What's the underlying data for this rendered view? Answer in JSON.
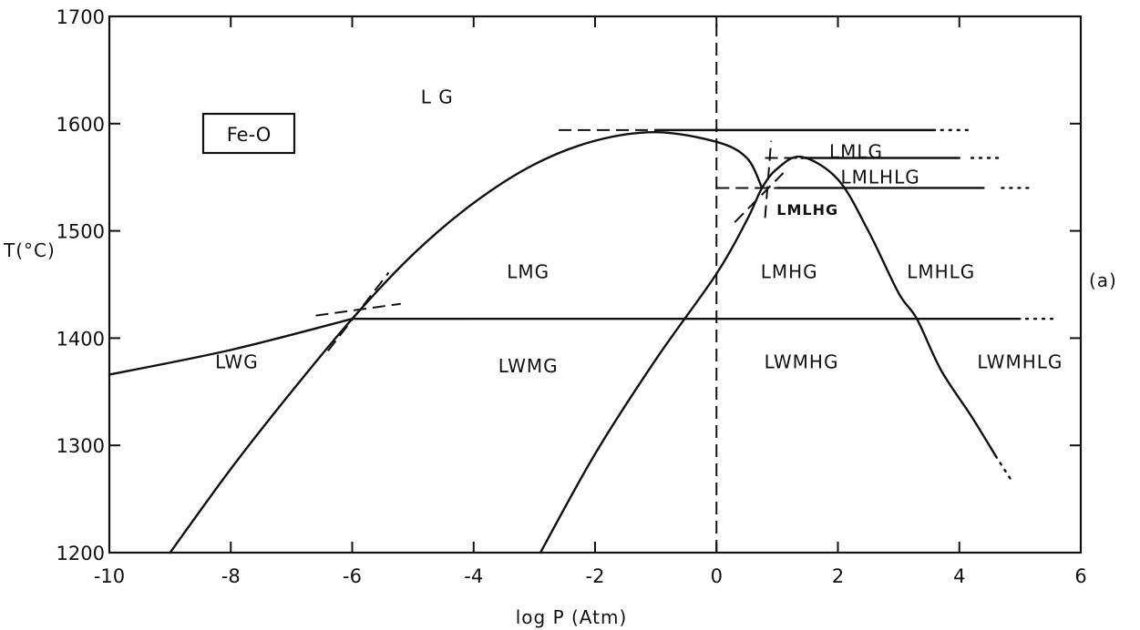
{
  "chart_data": {
    "type": "line",
    "title": "",
    "xlabel": "log P (Atm)",
    "ylabel": "T(°C)",
    "xlim": [
      -10,
      6
    ],
    "ylim": [
      1200,
      1700
    ],
    "x_ticks": [
      "-10",
      "-8",
      "-6",
      "-4",
      "-2",
      "0",
      "2",
      "4",
      "6"
    ],
    "y_ticks": [
      "1200",
      "1300",
      "1400",
      "1500",
      "1600",
      "1700"
    ],
    "system_label": "Fe-O",
    "case_label": "(a)",
    "regions": [
      {
        "label": "L G",
        "x": -4.6,
        "y": 1625
      },
      {
        "label": "LMG",
        "x": -3.1,
        "y": 1462
      },
      {
        "label": "LWG",
        "x": -7.9,
        "y": 1378
      },
      {
        "label": "LWMG",
        "x": -3.1,
        "y": 1374
      },
      {
        "label": "LMHG",
        "x": 1.2,
        "y": 1462
      },
      {
        "label": "LMHLG",
        "x": 3.7,
        "y": 1462
      },
      {
        "label": "LWMHG",
        "x": 1.4,
        "y": 1378
      },
      {
        "label": "LWMHLG",
        "x": 5.0,
        "y": 1378
      },
      {
        "label": "LMLG",
        "x": 2.3,
        "y": 1574
      },
      {
        "label": "LMLHLG",
        "x": 2.7,
        "y": 1550
      },
      {
        "label": "LMLHG",
        "x": 1.5,
        "y": 1521
      }
    ],
    "series": [
      {
        "id": "lwg-boundary",
        "style": "solid",
        "points": [
          [
            -10,
            1366
          ],
          [
            -8,
            1389
          ],
          [
            -6,
            1418
          ]
        ]
      },
      {
        "id": "outer-curve",
        "style": "solid",
        "points": [
          [
            -9,
            1200
          ],
          [
            -8,
            1278
          ],
          [
            -7,
            1350
          ],
          [
            -6,
            1418
          ],
          [
            -5,
            1478
          ],
          [
            -4,
            1526
          ],
          [
            -3,
            1562
          ],
          [
            -2,
            1584
          ],
          [
            -1,
            1592
          ],
          [
            0,
            1583
          ],
          [
            0.5,
            1568
          ],
          [
            0.75,
            1540
          ]
        ]
      },
      {
        "id": "inner-curve",
        "style": "solid",
        "points": [
          [
            -2.9,
            1200
          ],
          [
            -2,
            1292
          ],
          [
            -1,
            1380
          ],
          [
            0,
            1460
          ],
          [
            0.5,
            1510
          ],
          [
            0.75,
            1540
          ],
          [
            1,
            1558
          ],
          [
            1.4,
            1569
          ],
          [
            2,
            1548
          ],
          [
            2.5,
            1500
          ],
          [
            3,
            1442
          ],
          [
            3.3,
            1418
          ],
          [
            3.7,
            1370
          ],
          [
            4.2,
            1327
          ],
          [
            4.6,
            1290
          ]
        ]
      },
      {
        "id": "monotectic-1418",
        "style": "solid",
        "points": [
          [
            -6,
            1418
          ],
          [
            5,
            1418
          ]
        ]
      },
      {
        "id": "line-1594",
        "style": "solid",
        "points": [
          [
            -1,
            1594
          ],
          [
            3.6,
            1594
          ]
        ]
      },
      {
        "id": "line-1568",
        "style": "solid",
        "points": [
          [
            1.4,
            1568
          ],
          [
            4.0,
            1568
          ]
        ]
      },
      {
        "id": "line-1540",
        "style": "solid",
        "points": [
          [
            1.0,
            1540
          ],
          [
            4.4,
            1540
          ]
        ]
      },
      {
        "id": "dash-1594",
        "style": "dashed",
        "points": [
          [
            -2.6,
            1594
          ],
          [
            -1,
            1594
          ]
        ]
      },
      {
        "id": "dash-1568",
        "style": "dashed",
        "points": [
          [
            0.8,
            1568
          ],
          [
            1.4,
            1568
          ]
        ]
      },
      {
        "id": "dash-1540",
        "style": "dashed",
        "points": [
          [
            0,
            1540
          ],
          [
            1.0,
            1540
          ]
        ]
      },
      {
        "id": "dash-log0",
        "style": "dashed",
        "points": [
          [
            0,
            1200
          ],
          [
            0,
            1700
          ]
        ]
      },
      {
        "id": "dash-cross-a",
        "style": "dashed",
        "points": [
          [
            -6.6,
            1421
          ],
          [
            -5.2,
            1432
          ]
        ]
      },
      {
        "id": "dash-cross-b",
        "style": "dashed",
        "points": [
          [
            -6.4,
            1388
          ],
          [
            -5.4,
            1461
          ]
        ]
      },
      {
        "id": "dash-cross-c",
        "style": "dashed",
        "points": [
          [
            0.3,
            1508
          ],
          [
            1.1,
            1554
          ]
        ]
      },
      {
        "id": "dash-cross-d",
        "style": "dashed",
        "points": [
          [
            0.8,
            1512
          ],
          [
            0.9,
            1584
          ]
        ]
      },
      {
        "id": "dots-1594",
        "style": "dotted",
        "points": [
          [
            3.7,
            1594
          ],
          [
            4.2,
            1594
          ]
        ]
      },
      {
        "id": "dots-1568",
        "style": "dotted",
        "points": [
          [
            4.2,
            1568
          ],
          [
            4.7,
            1568
          ]
        ]
      },
      {
        "id": "dots-1540",
        "style": "dotted",
        "points": [
          [
            4.7,
            1540
          ],
          [
            5.2,
            1540
          ]
        ]
      },
      {
        "id": "dots-1418",
        "style": "dotted",
        "points": [
          [
            5.1,
            1418
          ],
          [
            5.6,
            1418
          ]
        ]
      },
      {
        "id": "dots-tail",
        "style": "dotted",
        "points": [
          [
            4.6,
            1290
          ],
          [
            4.85,
            1268
          ]
        ]
      }
    ],
    "grid": false,
    "legend": "none"
  }
}
